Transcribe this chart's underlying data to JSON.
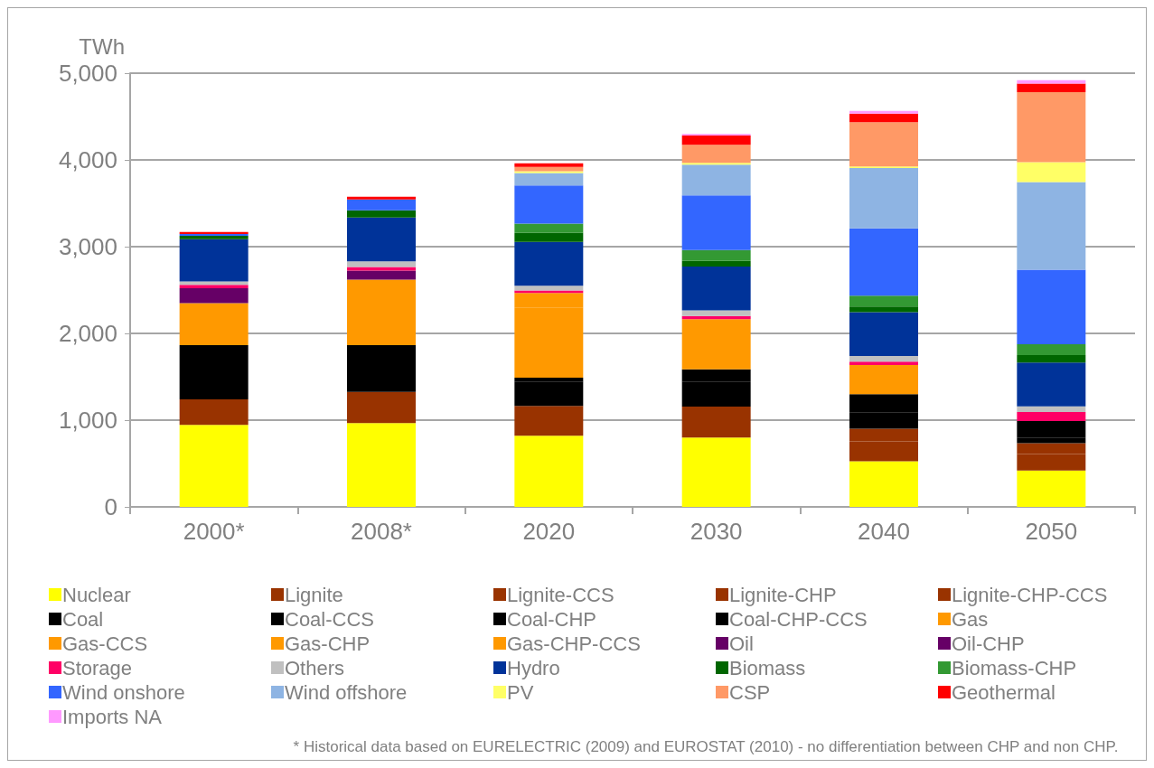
{
  "chart_data": {
    "type": "bar",
    "stacked": true,
    "ylabel": "TWh",
    "categories": [
      "2000*",
      "2008*",
      "2020",
      "2030",
      "2040",
      "2050"
    ],
    "ylim": [
      0,
      5000
    ],
    "yticks": [
      0,
      {
        "value": 1000,
        "label": "1,000"
      },
      {
        "value": 2000,
        "label": "2,000"
      },
      {
        "value": 3000,
        "label": "3,000"
      },
      {
        "value": 4000,
        "label": "4,000"
      },
      {
        "value": 5000,
        "label": "5,000"
      }
    ],
    "grid": "y",
    "legend": "bottom",
    "annotations": [
      "* Historical data based on EURELECTRIC (2009) and EUROSTAT (2010) - no differentiation between CHP and non CHP."
    ],
    "series": [
      {
        "name": "Nuclear",
        "color": "#ffff00",
        "values": [
          945,
          965,
          820,
          800,
          525,
          420
        ]
      },
      {
        "name": "Lignite",
        "color": "#993300",
        "values": [
          295,
          360,
          345,
          315,
          230,
          190
        ]
      },
      {
        "name": "Lignite-CCS",
        "color": "#993300",
        "values": [
          0,
          0,
          0,
          40,
          145,
          125
        ]
      },
      {
        "name": "Lignite-CHP",
        "color": "#993300",
        "values": [
          0,
          0,
          0,
          0,
          0,
          0
        ]
      },
      {
        "name": "Lignite-CHP-CCS",
        "color": "#993300",
        "values": [
          0,
          0,
          0,
          0,
          0,
          0
        ]
      },
      {
        "name": "Coal",
        "color": "#000000",
        "values": [
          625,
          540,
          275,
          230,
          190,
          65
        ]
      },
      {
        "name": "Coal-CCS",
        "color": "#000000",
        "values": [
          0,
          0,
          0,
          0,
          0,
          0
        ]
      },
      {
        "name": "Coal-CHP",
        "color": "#000000",
        "values": [
          0,
          0,
          50,
          55,
          0,
          0
        ]
      },
      {
        "name": "Coal-CHP-CCS",
        "color": "#000000",
        "values": [
          0,
          0,
          0,
          145,
          210,
          190
        ]
      },
      {
        "name": "Gas",
        "color": "#ff9900",
        "values": [
          485,
          755,
          805,
          580,
          335,
          0
        ]
      },
      {
        "name": "Gas-CCS",
        "color": "#ff9900",
        "values": [
          0,
          0,
          0,
          0,
          0,
          0
        ]
      },
      {
        "name": "Gas-CHP",
        "color": "#ff9900",
        "values": [
          0,
          0,
          170,
          0,
          0,
          0
        ]
      },
      {
        "name": "Gas-CHP-CCS",
        "color": "#ff9900",
        "values": [
          0,
          0,
          0,
          0,
          0,
          0
        ]
      },
      {
        "name": "Oil",
        "color": "#660066",
        "values": [
          170,
          105,
          0,
          0,
          0,
          0
        ]
      },
      {
        "name": "Oil-CHP",
        "color": "#660066",
        "values": [
          0,
          0,
          0,
          0,
          0,
          0
        ]
      },
      {
        "name": "Storage",
        "color": "#ff0066",
        "values": [
          40,
          40,
          30,
          35,
          40,
          105
        ]
      },
      {
        "name": "Others",
        "color": "#c0c0c0",
        "values": [
          40,
          65,
          55,
          65,
          65,
          65
        ]
      },
      {
        "name": "Hydro",
        "color": "#003399",
        "values": [
          485,
          505,
          505,
          505,
          505,
          505
        ]
      },
      {
        "name": "Biomass",
        "color": "#006600",
        "values": [
          40,
          85,
          105,
          65,
          65,
          85
        ]
      },
      {
        "name": "Biomass-CHP",
        "color": "#339933",
        "values": [
          0,
          0,
          105,
          125,
          125,
          125
        ]
      },
      {
        "name": "Wind onshore",
        "color": "#3366ff",
        "values": [
          20,
          125,
          440,
          630,
          775,
          860
        ]
      },
      {
        "name": "Wind offshore",
        "color": "#8eb4e3",
        "values": [
          0,
          0,
          145,
          355,
          695,
          1010
        ]
      },
      {
        "name": "PV",
        "color": "#ffff66",
        "values": [
          0,
          0,
          20,
          20,
          20,
          230
        ]
      },
      {
        "name": "CSP",
        "color": "#ff9966",
        "values": [
          0,
          0,
          50,
          210,
          510,
          805
        ]
      },
      {
        "name": "Geothermal",
        "color": "#ff0000",
        "values": [
          25,
          30,
          40,
          105,
          100,
          100
        ]
      },
      {
        "name": "Imports NA",
        "color": "#ff99ff",
        "values": [
          0,
          0,
          0,
          20,
          30,
          40
        ]
      }
    ]
  }
}
